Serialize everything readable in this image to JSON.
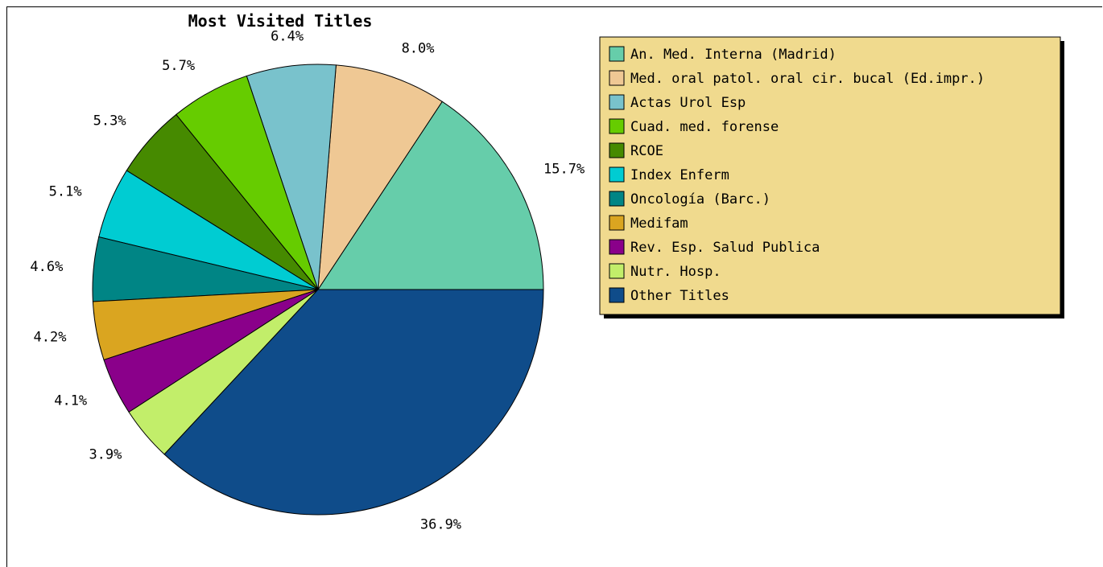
{
  "chart_data": {
    "type": "pie",
    "title": "Most Visited Titles",
    "slices": [
      {
        "label": "An. Med. Interna (Madrid)",
        "value": 15.7,
        "value_label": "15.7%",
        "color": "#66cdaa"
      },
      {
        "label": "Med. oral patol. oral cir. bucal (Ed.impr.)",
        "value": 8.0,
        "value_label": "8.0%",
        "color": "#efc894"
      },
      {
        "label": "Actas Urol Esp",
        "value": 6.4,
        "value_label": "6.4%",
        "color": "#79c2cc"
      },
      {
        "label": "Cuad. med. forense",
        "value": 5.7,
        "value_label": "5.7%",
        "color": "#66cc00"
      },
      {
        "label": "RCOE",
        "value": 5.3,
        "value_label": "5.3%",
        "color": "#468a00"
      },
      {
        "label": "Index Enferm",
        "value": 5.1,
        "value_label": "5.1%",
        "color": "#00ccd2"
      },
      {
        "label": "Oncología (Barc.)",
        "value": 4.6,
        "value_label": "4.6%",
        "color": "#008585"
      },
      {
        "label": "Medifam",
        "value": 4.2,
        "value_label": "4.2%",
        "color": "#daa520"
      },
      {
        "label": "Rev. Esp. Salud Publica",
        "value": 4.1,
        "value_label": "4.1%",
        "color": "#8a008a"
      },
      {
        "label": "Nutr. Hosp.",
        "value": 3.9,
        "value_label": "3.9%",
        "color": "#c2ee6a"
      },
      {
        "label": "Other Titles",
        "value": 36.9,
        "value_label": "36.9%",
        "color": "#0f4c8a"
      }
    ],
    "legend_placement": "top-right",
    "legend_background": "#f0da8e"
  }
}
